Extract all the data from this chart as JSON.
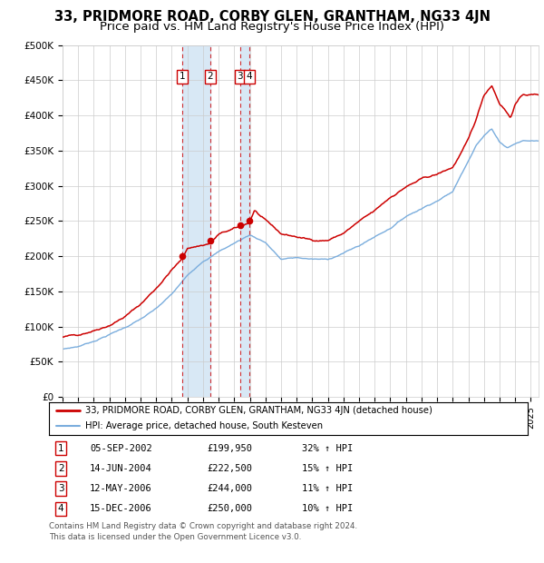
{
  "title": "33, PRIDMORE ROAD, CORBY GLEN, GRANTHAM, NG33 4JN",
  "subtitle": "Price paid vs. HM Land Registry's House Price Index (HPI)",
  "red_label": "33, PRIDMORE ROAD, CORBY GLEN, GRANTHAM, NG33 4JN (detached house)",
  "blue_label": "HPI: Average price, detached house, South Kesteven",
  "transactions": [
    {
      "num": 1,
      "date": "05-SEP-2002",
      "price": 199950,
      "pct": "32%",
      "dir": "↑",
      "year": 2002.68
    },
    {
      "num": 2,
      "date": "14-JUN-2004",
      "price": 222500,
      "pct": "15%",
      "dir": "↑",
      "year": 2004.45
    },
    {
      "num": 3,
      "date": "12-MAY-2006",
      "price": 244000,
      "pct": "11%",
      "dir": "↑",
      "year": 2006.36
    },
    {
      "num": 4,
      "date": "15-DEC-2006",
      "price": 250000,
      "pct": "10%",
      "dir": "↑",
      "year": 2006.96
    }
  ],
  "footer1": "Contains HM Land Registry data © Crown copyright and database right 2024.",
  "footer2": "This data is licensed under the Open Government Licence v3.0.",
  "ylim": [
    0,
    500000
  ],
  "xlim_start": 1995.0,
  "xlim_end": 2025.5,
  "red_color": "#cc0000",
  "blue_color": "#7aaddd",
  "shade_color": "#d8e8f5",
  "grid_color": "#cccccc",
  "bg_color": "#ffffff",
  "title_fontsize": 10.5,
  "subtitle_fontsize": 9.5,
  "red_ctrl_years": [
    1995,
    1996,
    1997,
    1998,
    1999,
    2000,
    2001,
    2002,
    2002.68,
    2003,
    2004,
    2004.45,
    2005,
    2006,
    2006.36,
    2006.96,
    2007.3,
    2008,
    2009,
    2010,
    2011,
    2012,
    2013,
    2014,
    2015,
    2016,
    2017,
    2018,
    2019,
    2020,
    2021,
    2021.5,
    2022,
    2022.5,
    2023,
    2023.3,
    2023.7,
    2024,
    2024.5,
    2025.5
  ],
  "red_ctrl_prices": [
    85000,
    88000,
    96000,
    105000,
    118000,
    135000,
    158000,
    185000,
    199950,
    215000,
    220000,
    222500,
    235000,
    242000,
    244000,
    250000,
    268000,
    252000,
    232000,
    228000,
    223000,
    224000,
    234000,
    250000,
    263000,
    282000,
    298000,
    308000,
    314000,
    324000,
    362000,
    390000,
    425000,
    440000,
    415000,
    408000,
    395000,
    415000,
    428000,
    428000
  ],
  "blue_ctrl_years": [
    1995,
    1996,
    1997,
    1998,
    1999,
    2000,
    2001,
    2002,
    2003,
    2004,
    2005,
    2006,
    2007,
    2008,
    2009,
    2010,
    2011,
    2012,
    2013,
    2014,
    2015,
    2016,
    2017,
    2018,
    2019,
    2020,
    2021,
    2021.5,
    2022,
    2022.5,
    2023,
    2023.5,
    2024,
    2024.5,
    2025.5
  ],
  "blue_ctrl_prices": [
    68000,
    72000,
    80000,
    90000,
    100000,
    112000,
    126000,
    146000,
    172000,
    194000,
    208000,
    220000,
    232000,
    222000,
    198000,
    200000,
    198000,
    197000,
    207000,
    217000,
    230000,
    243000,
    260000,
    272000,
    284000,
    297000,
    342000,
    365000,
    378000,
    388000,
    370000,
    362000,
    368000,
    372000,
    372000
  ]
}
